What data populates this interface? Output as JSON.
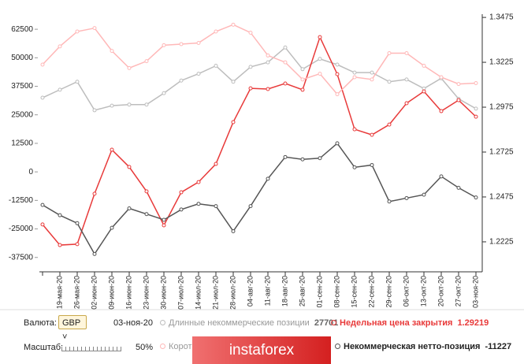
{
  "chart_data": {
    "type": "line",
    "categories": [
      null,
      "19-мая-20",
      "26-мая-20",
      "02-июн-20",
      "09-июн-20",
      "16-июн-20",
      "23-июн-20",
      "30-июн-20",
      "07-июл-20",
      "14-июл-20",
      "21-июл-20",
      "28-июл-20",
      "04-авг-20",
      "11-авг-20",
      "18-авг-20",
      "25-авг-20",
      "01-сен-20",
      "08-сен-20",
      "15-сен-20",
      "22-сен-20",
      "29-сен-20",
      "06-окт-20",
      "13-окт-20",
      "20-окт-20",
      "27-окт-20",
      "03-ноя-20"
    ],
    "series": [
      {
        "name": "Длинные некоммерческие позиции",
        "color": "#bdbdbd",
        "values": [
          32500,
          36000,
          39500,
          27000,
          29000,
          29500,
          29500,
          34500,
          40000,
          43000,
          46500,
          39500,
          46000,
          48000,
          54500,
          45000,
          49500,
          47000,
          43500,
          43500,
          39500,
          40500,
          36500,
          41000,
          32000,
          27701
        ]
      },
      {
        "name": "Недельная цена закрытия",
        "color": "#e83a3a",
        "axis": "y2",
        "values": [
          1.2322,
          1.2207,
          1.2212,
          1.2493,
          1.2738,
          1.2642,
          1.2506,
          1.2317,
          1.2501,
          1.2558,
          1.2659,
          1.2892,
          1.308,
          1.3076,
          1.3107,
          1.3072,
          1.3365,
          1.3159,
          1.2852,
          1.2821,
          1.2878,
          1.2997,
          1.3063,
          1.2953,
          1.3014,
          1.29219
        ]
      },
      {
        "name": "Коротк",
        "color": "#ffb8b8",
        "values": [
          47000,
          55000,
          61500,
          63000,
          53000,
          45500,
          48500,
          55500,
          56000,
          56500,
          61500,
          64500,
          61000,
          51000,
          48000,
          40500,
          43000,
          34000,
          41500,
          40500,
          52000,
          52000,
          46500,
          41500,
          38500,
          38900
        ]
      },
      {
        "name": "Некоммерческая нетто-позиция",
        "color": "#555555",
        "values": [
          -14500,
          -19000,
          -22500,
          -36000,
          -24500,
          -16000,
          -18500,
          -21000,
          -16500,
          -14000,
          -15000,
          -26000,
          -15000,
          -3000,
          6500,
          5500,
          6000,
          12500,
          2000,
          3000,
          -13000,
          -11500,
          -10000,
          -2000,
          -7000,
          -11227
        ]
      }
    ],
    "ylim": [
      -43800,
      69100
    ],
    "yticks": [
      -37500,
      -25000,
      -12500,
      0,
      12500,
      25000,
      37500,
      50000,
      62500
    ],
    "y2lim": [
      1.2058,
      1.3493
    ],
    "y2ticks": [
      1.2225,
      1.2475,
      1.2725,
      1.2975,
      1.3225,
      1.3475
    ]
  },
  "ui": {
    "currency_label": "Валюта:",
    "currency": "GBP",
    "date": "03-ноя-20",
    "scale_label": "Масштаб:",
    "scale": "50%",
    "logo": "instaforex"
  }
}
